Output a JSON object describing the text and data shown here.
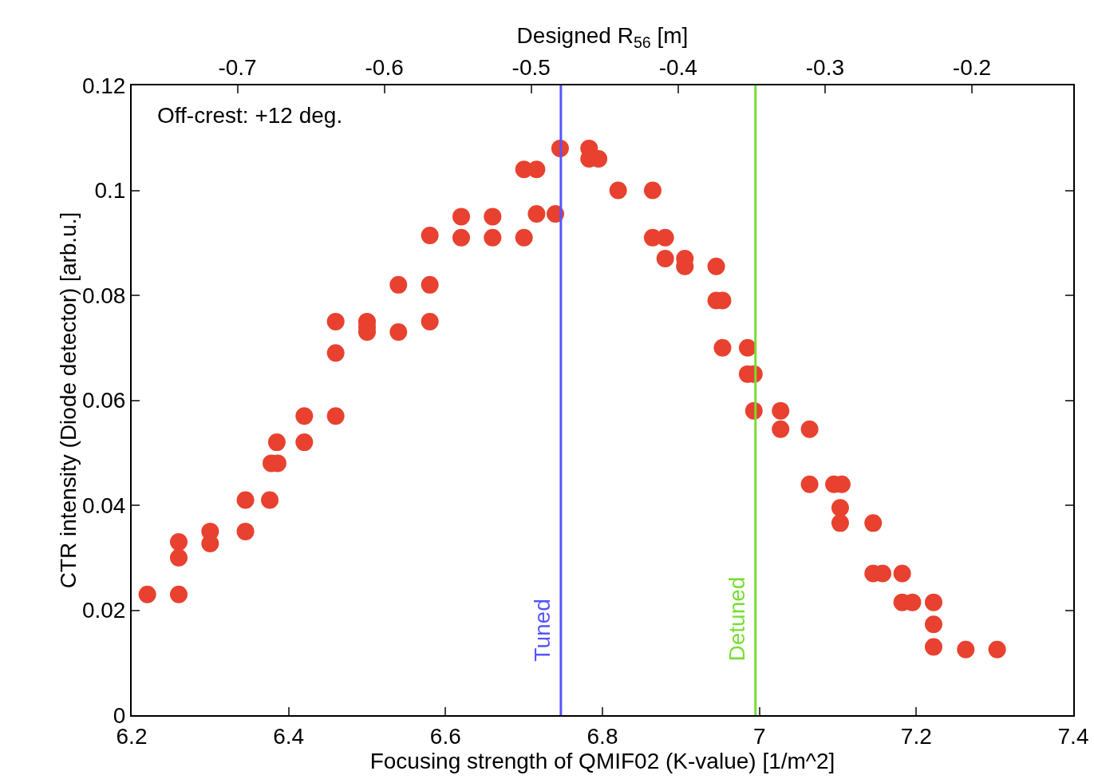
{
  "chart_data": {
    "type": "scatter",
    "xlabel": "Focusing strength of QMIF02 (K-value) [1/m^2]",
    "ylabel": "CTR intensity (Diode detector) [arb.u.]",
    "x2label": "Designed R$_{56}$ [m]",
    "x": [
      6.22,
      6.26,
      6.26,
      6.26,
      6.3,
      6.3,
      6.345,
      6.345,
      6.376,
      6.378,
      6.386,
      6.385,
      6.42,
      6.42,
      6.46,
      6.46,
      6.46,
      6.5,
      6.5,
      6.5,
      6.54,
      6.54,
      6.58,
      6.58,
      6.58,
      6.62,
      6.62,
      6.66,
      6.66,
      6.7,
      6.7,
      6.716,
      6.716,
      6.74,
      6.746,
      6.783,
      6.783,
      6.795,
      6.82,
      6.864,
      6.864,
      6.88,
      6.88,
      6.905,
      6.905,
      6.945,
      6.945,
      6.953,
      6.953,
      6.985,
      6.985,
      6.993,
      6.993,
      7.027,
      7.027,
      7.064,
      7.064,
      7.095,
      7.105,
      7.103,
      7.103,
      7.145,
      7.145,
      7.157,
      7.182,
      7.182,
      7.195,
      7.222,
      7.222,
      7.222,
      7.263,
      7.303
    ],
    "values": [
      0.023,
      0.033,
      0.03,
      0.023,
      0.035,
      0.0327,
      0.041,
      0.035,
      0.041,
      0.048,
      0.048,
      0.052,
      0.057,
      0.052,
      0.075,
      0.069,
      0.057,
      0.075,
      0.073,
      0.074,
      0.082,
      0.073,
      0.082,
      0.075,
      0.0914,
      0.095,
      0.091,
      0.095,
      0.091,
      0.104,
      0.091,
      0.104,
      0.0955,
      0.0955,
      0.108,
      0.108,
      0.106,
      0.106,
      0.1,
      0.1,
      0.091,
      0.091,
      0.087,
      0.087,
      0.0855,
      0.0855,
      0.079,
      0.079,
      0.07,
      0.07,
      0.065,
      0.065,
      0.058,
      0.058,
      0.0545,
      0.0545,
      0.044,
      0.044,
      0.044,
      0.0395,
      0.0366,
      0.0366,
      0.027,
      0.027,
      0.027,
      0.0215,
      0.0215,
      0.0215,
      0.0173,
      0.013,
      0.0125,
      0.0125
    ],
    "color": "#e8412f",
    "marker": "circle",
    "grid": false,
    "xlim": [
      6.2,
      7.4
    ],
    "xticks": [
      6.2,
      6.4,
      6.6,
      6.8,
      7,
      7.2,
      7.4
    ],
    "ylim": [
      0,
      0.12
    ],
    "yticks": [
      0,
      0.02,
      0.04,
      0.06,
      0.08,
      0.1,
      0.12
    ],
    "x2lim": [
      -0.772,
      -0.131
    ],
    "x2ticks": [
      -0.7,
      -0.6,
      -0.5,
      -0.4,
      -0.3,
      -0.2
    ],
    "ref_lines": [
      {
        "axis": "x",
        "value": 6.747,
        "label": "Tuned",
        "color": "#5555ff"
      },
      {
        "axis": "x",
        "value": 6.995,
        "label": "Detuned",
        "color": "#77dd33"
      }
    ],
    "annotations": [
      "Off-crest: +12 deg."
    ]
  }
}
